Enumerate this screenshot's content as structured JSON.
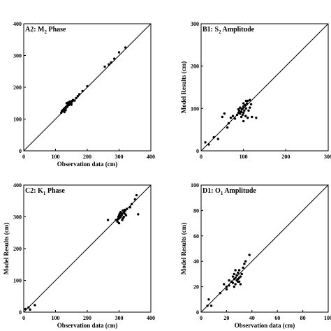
{
  "chart_data": [
    {
      "type": "scatter",
      "title_main": "A2: M",
      "title_sub": "2",
      "title_rest": " Phase",
      "xlabel": "Observation data (cm)",
      "ylabel": "",
      "xlim": [
        0,
        400
      ],
      "ylim": [
        0,
        400
      ],
      "xticks": [
        0,
        100,
        200,
        300,
        400
      ],
      "yticks": [
        0,
        100,
        200,
        300,
        400
      ],
      "reference_line": "1:1",
      "points": [
        [
          118,
          120
        ],
        [
          120,
          125
        ],
        [
          122,
          127
        ],
        [
          124,
          129
        ],
        [
          126,
          131
        ],
        [
          128,
          133
        ],
        [
          130,
          135
        ],
        [
          132,
          137
        ],
        [
          134,
          139
        ],
        [
          136,
          141
        ],
        [
          138,
          143
        ],
        [
          140,
          145
        ],
        [
          142,
          146
        ],
        [
          144,
          149
        ],
        [
          146,
          151
        ],
        [
          148,
          153
        ],
        [
          150,
          155
        ],
        [
          152,
          157
        ],
        [
          155,
          160
        ],
        [
          126,
          128
        ],
        [
          130,
          130
        ],
        [
          134,
          136
        ],
        [
          138,
          140
        ],
        [
          142,
          144
        ],
        [
          146,
          148
        ],
        [
          150,
          150
        ],
        [
          140,
          152
        ],
        [
          145,
          155
        ],
        [
          150,
          145
        ],
        [
          135,
          150
        ],
        [
          160,
          158
        ],
        [
          165,
          166
        ],
        [
          170,
          172
        ],
        [
          175,
          178
        ],
        [
          185,
          188
        ],
        [
          200,
          203
        ],
        [
          255,
          265
        ],
        [
          268,
          272
        ],
        [
          275,
          278
        ],
        [
          285,
          290
        ],
        [
          300,
          310
        ],
        [
          320,
          325
        ],
        [
          128,
          122
        ],
        [
          132,
          128
        ]
      ]
    },
    {
      "type": "scatter",
      "title_main": "B1: S",
      "title_sub": "2",
      "title_rest": " Amplitude",
      "xlabel": "",
      "ylabel": "Model Results (cm)",
      "xlim": [
        0,
        300
      ],
      "ylim": [
        0,
        300
      ],
      "xticks": [
        0,
        100,
        200,
        300
      ],
      "yticks": [
        0,
        100,
        200,
        300
      ],
      "reference_line": "1:1",
      "points": [
        [
          10,
          20
        ],
        [
          18,
          15
        ],
        [
          30,
          32
        ],
        [
          40,
          28
        ],
        [
          50,
          80
        ],
        [
          55,
          88
        ],
        [
          62,
          55
        ],
        [
          65,
          65
        ],
        [
          70,
          78
        ],
        [
          75,
          82
        ],
        [
          80,
          76
        ],
        [
          85,
          85
        ],
        [
          88,
          90
        ],
        [
          90,
          95
        ],
        [
          92,
          88
        ],
        [
          95,
          92
        ],
        [
          96,
          98
        ],
        [
          98,
          100
        ],
        [
          100,
          90
        ],
        [
          100,
          105
        ],
        [
          102,
          95
        ],
        [
          104,
          108
        ],
        [
          106,
          100
        ],
        [
          108,
          112
        ],
        [
          110,
          118
        ],
        [
          112,
          95
        ],
        [
          115,
          102
        ],
        [
          118,
          110
        ],
        [
          120,
          80
        ],
        [
          95,
          80
        ],
        [
          98,
          85
        ],
        [
          105,
          82
        ],
        [
          110,
          78
        ],
        [
          130,
          78
        ],
        [
          100,
          70
        ],
        [
          92,
          102
        ],
        [
          88,
          98
        ],
        [
          100,
          112
        ],
        [
          106,
          118
        ],
        [
          115,
          120
        ]
      ]
    },
    {
      "type": "scatter",
      "title_main": "C2: K",
      "title_sub": "1",
      "title_rest": " Phase",
      "xlabel": "Observation data (cm)",
      "ylabel": "Model Results (cm)",
      "xlim": [
        0,
        400
      ],
      "ylim": [
        0,
        400
      ],
      "xticks": [
        0,
        100,
        200,
        300,
        400
      ],
      "yticks": [
        0,
        100,
        200,
        300,
        400
      ],
      "reference_line": "1:1",
      "points": [
        [
          5,
          10
        ],
        [
          15,
          15
        ],
        [
          20,
          8
        ],
        [
          35,
          22
        ],
        [
          265,
          290
        ],
        [
          290,
          290
        ],
        [
          295,
          285
        ],
        [
          298,
          300
        ],
        [
          300,
          295
        ],
        [
          300,
          305
        ],
        [
          302,
          310
        ],
        [
          305,
          300
        ],
        [
          305,
          315
        ],
        [
          308,
          305
        ],
        [
          310,
          310
        ],
        [
          312,
          295
        ],
        [
          312,
          320
        ],
        [
          315,
          315
        ],
        [
          318,
          310
        ],
        [
          320,
          320
        ],
        [
          322,
          305
        ],
        [
          325,
          325
        ],
        [
          300,
          280
        ],
        [
          310,
          290
        ],
        [
          296,
          292
        ],
        [
          303,
          298
        ],
        [
          335,
          330
        ],
        [
          340,
          340
        ],
        [
          350,
          355
        ],
        [
          355,
          368
        ],
        [
          360,
          308
        ],
        [
          315,
          300
        ],
        [
          318,
          322
        ],
        [
          306,
          312
        ]
      ]
    },
    {
      "type": "scatter",
      "title_main": "D1: O",
      "title_sub": "1",
      "title_rest": " Amplitude",
      "xlabel": "Observation data (cm)",
      "ylabel": "Model Results (cm)",
      "xlim": [
        0,
        100
      ],
      "ylim": [
        0,
        100
      ],
      "xticks": [
        0,
        20,
        40,
        60,
        80,
        100
      ],
      "yticks": [
        0,
        20,
        40,
        60,
        80,
        100
      ],
      "reference_line": "1:1",
      "points": [
        [
          5,
          5
        ],
        [
          6,
          10
        ],
        [
          8,
          5
        ],
        [
          15,
          15
        ],
        [
          18,
          22
        ],
        [
          20,
          18
        ],
        [
          20,
          20
        ],
        [
          22,
          25
        ],
        [
          22,
          21
        ],
        [
          24,
          24
        ],
        [
          25,
          28
        ],
        [
          25,
          23
        ],
        [
          26,
          26
        ],
        [
          26,
          30
        ],
        [
          27,
          22
        ],
        [
          27,
          27
        ],
        [
          28,
          25
        ],
        [
          28,
          29
        ],
        [
          29,
          24
        ],
        [
          29,
          31
        ],
        [
          30,
          27
        ],
        [
          30,
          33
        ],
        [
          31,
          28
        ],
        [
          31,
          22
        ],
        [
          32,
          30
        ],
        [
          33,
          35
        ],
        [
          34,
          38
        ],
        [
          35,
          40
        ],
        [
          38,
          45
        ],
        [
          26,
          20
        ],
        [
          27,
          33
        ],
        [
          29,
          26
        ],
        [
          30,
          24
        ]
      ]
    }
  ]
}
